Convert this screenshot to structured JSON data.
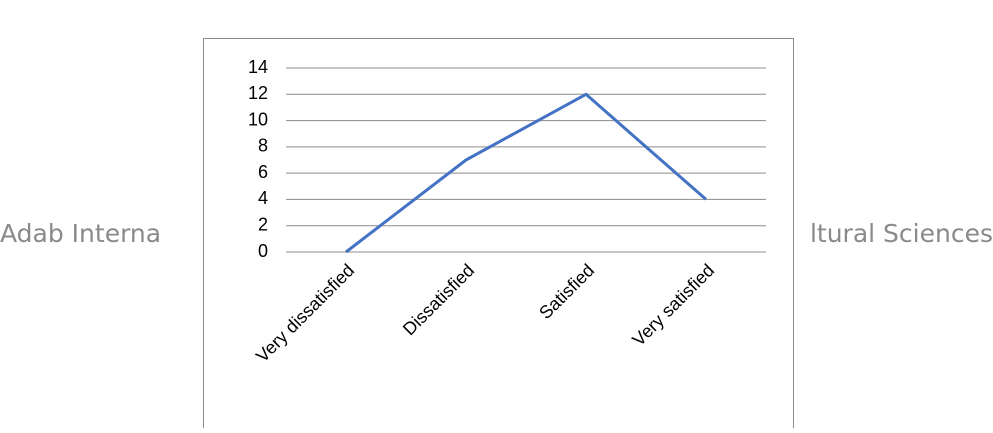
{
  "watermark": [
    "Adab Interna",
    "ltural Sciences"
  ],
  "chart_data": {
    "type": "line",
    "categories": [
      "Very dissatisfied",
      "Dissatisfied",
      "Satisfied",
      "Very satisfied"
    ],
    "values": [
      0,
      7,
      12,
      4
    ],
    "color": "#4472c4",
    "ylim": [
      0,
      14
    ],
    "yticks": [
      0,
      2,
      4,
      6,
      8,
      10,
      12,
      14
    ],
    "grid": true
  }
}
